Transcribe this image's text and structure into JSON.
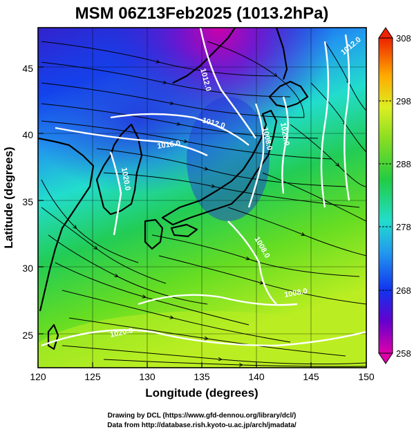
{
  "title": "MSM 06Z13Feb2025 (1013.2hPa)",
  "x_axis": {
    "label": "Longitude (degrees)",
    "range": [
      120,
      150
    ],
    "ticks": [
      "120",
      "125",
      "130",
      "135",
      "140",
      "145",
      "150"
    ]
  },
  "y_axis": {
    "label": "Latitude  (degrees)",
    "range": [
      22.5,
      48
    ],
    "ticks": [
      "25",
      "30",
      "35",
      "40",
      "45"
    ]
  },
  "colorbar": {
    "ticks": [
      "308",
      "298",
      "288",
      "278",
      "268",
      "258"
    ],
    "range": [
      258,
      308
    ],
    "colors": [
      "#cc0099",
      "#6600cc",
      "#1133ee",
      "#2299ee",
      "#22ddcc",
      "#22cc44",
      "#88dd22",
      "#ddee22",
      "#ffaa00",
      "#ee3300"
    ]
  },
  "contour_labels": [
    "1012.0",
    "1012.0",
    "1016.0",
    "1020.0",
    "1008.0",
    "1020.0",
    "1008.0",
    "1008.0",
    "1020.0",
    "1012.0"
  ],
  "credits": {
    "line1": "Drawing by DCL (https://www.gfd-dennou.org/library/dcl/)",
    "line2": "Data from http://database.rish.kyoto-u.ac.jp/arch/jmadata/"
  }
}
